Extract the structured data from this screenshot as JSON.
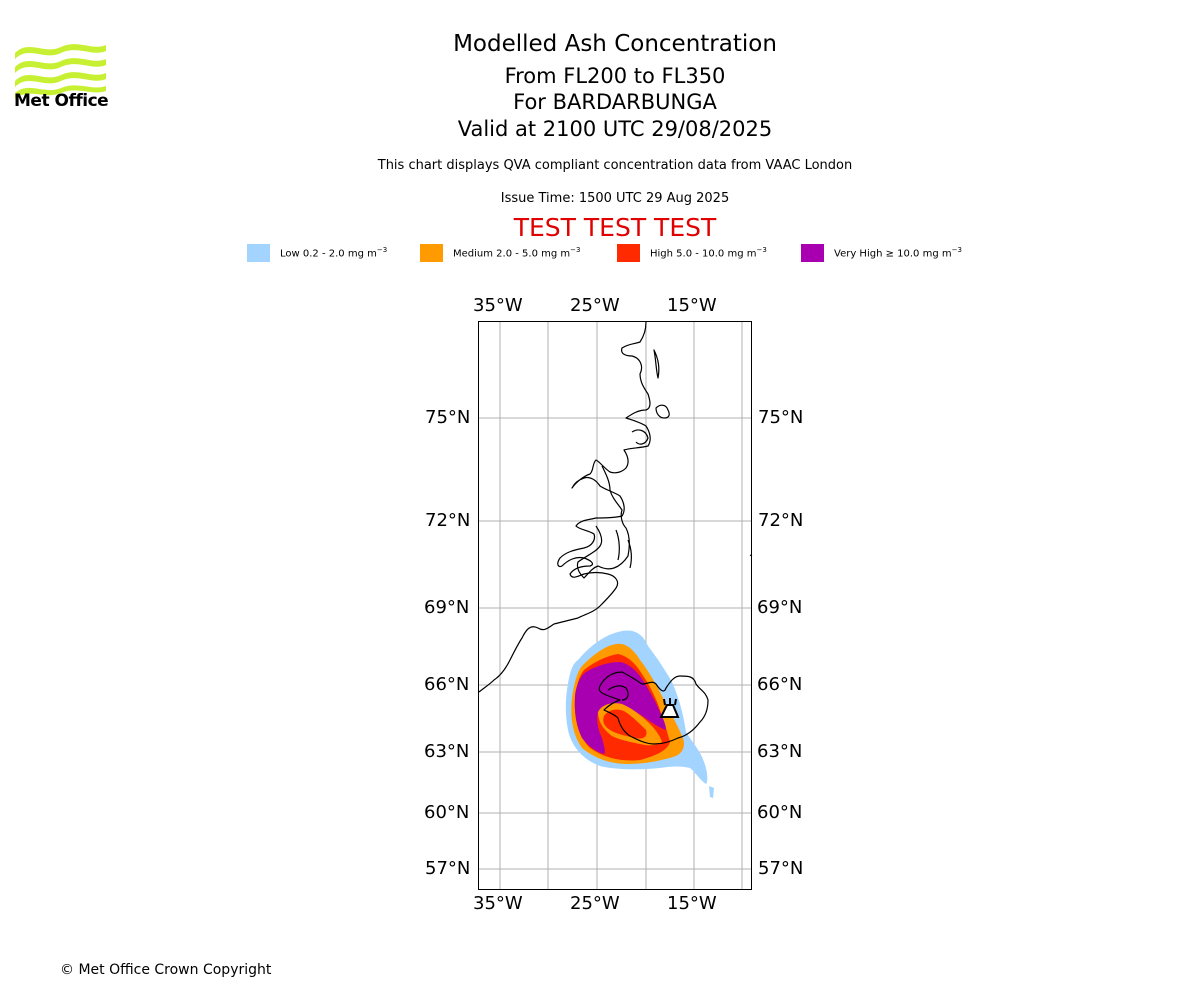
{
  "header": {
    "title": "Modelled Ash Concentration",
    "flight_levels": "From FL200 to FL350",
    "volcano": "For BARDARBUNGA",
    "valid_time": "Valid at 2100 UTC 29/08/2025",
    "description": "This chart displays QVA compliant concentration data from VAAC London",
    "issue_time": "Issue Time: 1500 UTC 29 Aug 2025",
    "test_banner": "TEST TEST TEST"
  },
  "logo": {
    "text": "Met Office",
    "color": "#c8f032"
  },
  "legend": [
    {
      "prefix": "Low 0.2 - 2.0 mg m",
      "exp": "−3",
      "color": "#a3d4ff"
    },
    {
      "prefix": "Medium 2.0 - 5.0 mg m",
      "exp": "−3",
      "color": "#ff9a00"
    },
    {
      "prefix": "High 5.0 - 10.0 mg m",
      "exp": "−3",
      "color": "#ff2a00"
    },
    {
      "prefix": "Very High  ≥  10.0 mg m",
      "exp": "−3",
      "color": "#a800b0"
    }
  ],
  "map": {
    "lon_labels": [
      "35°W",
      "25°W",
      "15°W"
    ],
    "lat_labels": [
      "75°N",
      "72°N",
      "69°N",
      "66°N",
      "63°N",
      "60°N",
      "57°N"
    ],
    "extent": {
      "lon": [
        -37,
        -9
      ],
      "lat": [
        56,
        78
      ]
    },
    "volcano_symbol": "volcano-icon"
  },
  "footer": {
    "copyright": "© Met Office Crown Copyright"
  }
}
